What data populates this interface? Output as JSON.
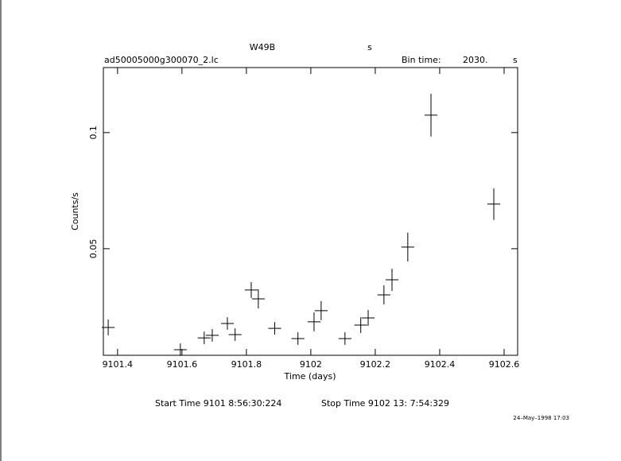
{
  "chart_data": {
    "type": "errorbar",
    "object": "W49B",
    "object_unit": "s",
    "file": "ad50005000g300070_2.lc",
    "bin_label": "Bin time:",
    "bin_value": "2030.",
    "bin_unit": "s",
    "ylabel": "Counts/s",
    "xlabel": "Time (days)",
    "start_time": "Start Time  9101  8:56:30:224",
    "stop_time": "Stop Time  9102 13: 7:54:329",
    "date": "24–May–1998 17:03",
    "xlim": [
      9101.356,
      9102.642
    ],
    "ylim": [
      0.0041,
      0.128
    ],
    "xticks": [
      9101.4,
      9101.6,
      9101.8,
      9102,
      9102.2,
      9102.4,
      9102.6
    ],
    "yticks": [
      0.05,
      0.1
    ],
    "color": "#000000",
    "xerr": 0.02,
    "x": [
      9101.371,
      9101.595,
      9101.669,
      9101.694,
      9101.741,
      9101.765,
      9101.815,
      9101.837,
      9101.888,
      9101.96,
      9102.01,
      9102.032,
      9102.106,
      9102.155,
      9102.178,
      9102.227,
      9102.252,
      9102.301,
      9102.373,
      9102.568
    ],
    "values": [
      0.0161,
      0.0065,
      0.0116,
      0.0127,
      0.0178,
      0.013,
      0.0322,
      0.0284,
      0.0157,
      0.0113,
      0.0185,
      0.0233,
      0.0113,
      0.0171,
      0.0202,
      0.0301,
      0.0366,
      0.0507,
      0.1075,
      0.0692
    ],
    "yerr": [
      0.0034,
      0.0027,
      0.0027,
      0.0027,
      0.0027,
      0.0027,
      0.0034,
      0.0041,
      0.0027,
      0.0027,
      0.0041,
      0.0041,
      0.0027,
      0.0034,
      0.0034,
      0.0041,
      0.0048,
      0.0062,
      0.0092,
      0.0068
    ]
  }
}
